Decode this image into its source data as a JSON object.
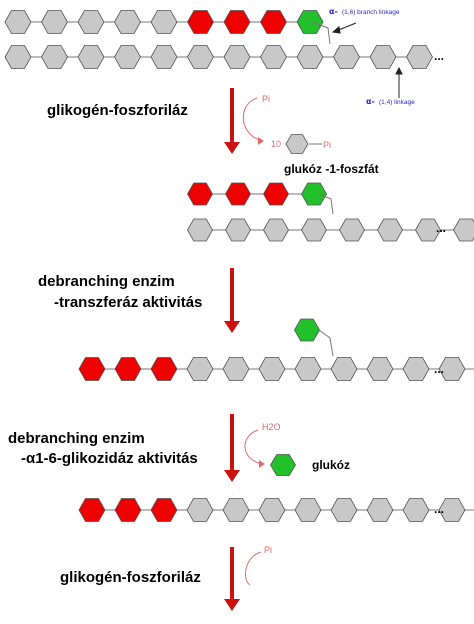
{
  "colors": {
    "grey": "#c8c8c8",
    "red": "#ee0000",
    "green": "#22c02a",
    "arrow": "#cc1111",
    "blue_text": "#2a2ad0",
    "curved_arrow": "#e26a6a"
  },
  "annotations": {
    "branch_alpha": "α-",
    "branch_label": "(1,6) branch linkage",
    "linear_alpha": "α-",
    "linear_label": "(1,4) linkage"
  },
  "steps": {
    "step1": "glikogén-foszforiláz",
    "step2_line1": "debranching enzim",
    "step2_line2": "-transzferáz aktivitás",
    "step3_line1": "debranching enzim",
    "step3_line2": "-α1-6-glikozidáz aktivitás",
    "step4": "glikogén-foszforiláz"
  },
  "reagents": {
    "pi_1": "Pi",
    "count": "10",
    "pi_product": "Pi",
    "h2o": "H2O",
    "pi_4": "Pi"
  },
  "products": {
    "g1p": "glukóz -1-foszfát",
    "glucose": "glukóz"
  },
  "ellipsis": "..."
}
